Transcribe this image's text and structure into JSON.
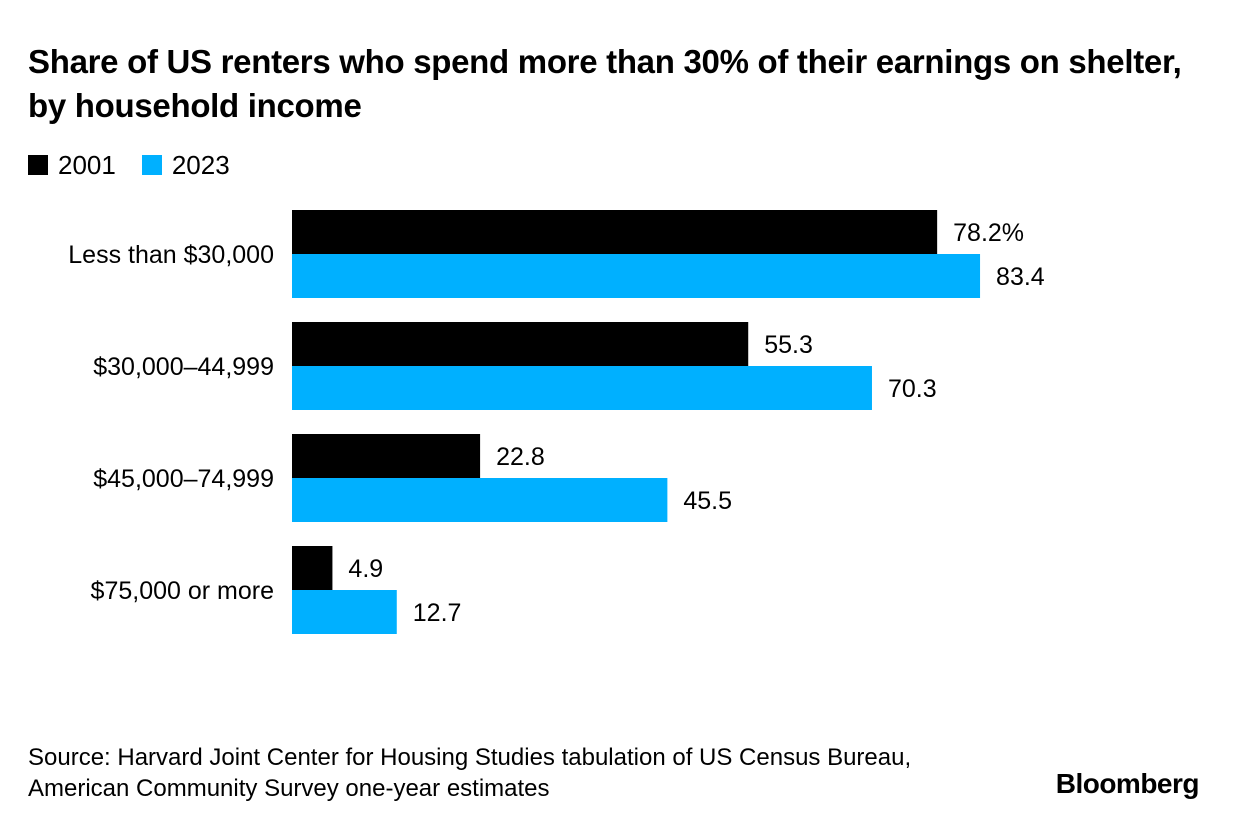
{
  "title": "Share of US renters who spend more than 30% of their earnings on shelter, by household income",
  "legend": [
    {
      "label": "2001",
      "color": "#000000"
    },
    {
      "label": "2023",
      "color": "#00B0FF"
    }
  ],
  "chart_data": {
    "type": "bar",
    "orientation": "horizontal",
    "title": "Share of US renters who spend more than 30% of their earnings on shelter, by household income",
    "categories": [
      "Less than $30,000",
      "$30,000–44,999",
      "$45,000–74,999",
      "$75,000 or more"
    ],
    "series": [
      {
        "name": "2001",
        "color": "#000000",
        "values": [
          78.2,
          55.3,
          22.8,
          4.9
        ],
        "labels": [
          "78.2%",
          "55.3",
          "22.8",
          "4.9"
        ]
      },
      {
        "name": "2023",
        "color": "#00B0FF",
        "values": [
          83.4,
          70.3,
          45.5,
          12.7
        ],
        "labels": [
          "83.4",
          "70.3",
          "45.5",
          "12.7"
        ]
      }
    ],
    "xlim": [
      0,
      100
    ],
    "xlabel": "",
    "ylabel": "",
    "grid": false,
    "legend_position": "top-left"
  },
  "footer": {
    "source": "Source: Harvard Joint Center for Housing Studies tabulation of US Census Bureau, American Community Survey one-year estimates",
    "brand": "Bloomberg"
  }
}
